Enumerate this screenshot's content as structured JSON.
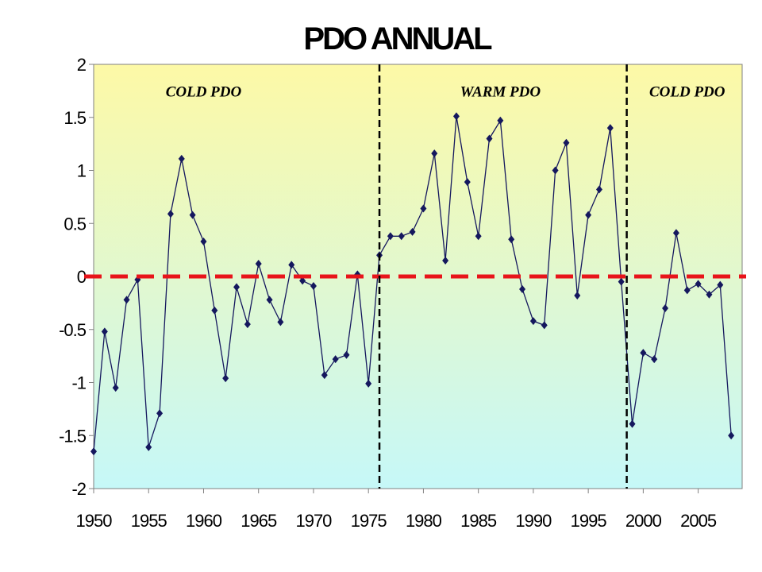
{
  "chart_data": {
    "type": "line",
    "title": "PDO ANNUAL",
    "xlabel": "",
    "ylabel": "",
    "xlim": [
      1950,
      2009
    ],
    "ylim": [
      -2,
      2
    ],
    "x_ticks": [
      1950,
      1955,
      1960,
      1965,
      1970,
      1975,
      1980,
      1985,
      1990,
      1995,
      2000,
      2005
    ],
    "y_ticks": [
      {
        "value": 2,
        "label": "2"
      },
      {
        "value": 1.5,
        "label": "1.5"
      },
      {
        "value": 1,
        "label": "1"
      },
      {
        "value": 0.5,
        "label": "0.5"
      },
      {
        "value": 0,
        "label": "0"
      },
      {
        "value": -0.5,
        "label": "-0.5"
      },
      {
        "value": -1,
        "label": "-1"
      },
      {
        "value": -1.5,
        "label": "-1.5"
      },
      {
        "value": -2,
        "label": "-2"
      }
    ],
    "grid": false,
    "background_gradient": [
      "#fdf9a6",
      "#c6f8f8"
    ],
    "series": [
      {
        "color": "#15185e",
        "marker": "diamond",
        "x": [
          1950,
          1951,
          1952,
          1953,
          1954,
          1955,
          1956,
          1957,
          1958,
          1959,
          1960,
          1961,
          1962,
          1963,
          1964,
          1965,
          1966,
          1967,
          1968,
          1969,
          1970,
          1971,
          1972,
          1973,
          1974,
          1975,
          1976,
          1977,
          1978,
          1979,
          1980,
          1981,
          1982,
          1983,
          1984,
          1985,
          1986,
          1987,
          1988,
          1989,
          1990,
          1991,
          1992,
          1993,
          1994,
          1995,
          1996,
          1997,
          1998,
          1999,
          2000,
          2001,
          2002,
          2003,
          2004,
          2005,
          2006,
          2007,
          2008
        ],
        "y": [
          -1.65,
          -0.52,
          -1.05,
          -0.22,
          -0.03,
          -1.61,
          -1.29,
          0.59,
          1.11,
          0.58,
          0.33,
          -0.32,
          -0.96,
          -0.1,
          -0.45,
          0.12,
          -0.22,
          -0.43,
          0.11,
          -0.04,
          -0.09,
          -0.93,
          -0.78,
          -0.74,
          0.02,
          -1.01,
          0.2,
          0.38,
          0.38,
          0.42,
          0.64,
          1.16,
          0.15,
          1.51,
          0.89,
          0.38,
          1.3,
          1.47,
          0.35,
          -0.12,
          -0.42,
          -0.46,
          1.0,
          1.26,
          -0.18,
          0.58,
          0.82,
          1.4,
          -0.05,
          -1.39,
          -0.72,
          -0.78,
          -0.3,
          0.41,
          -0.13,
          -0.07,
          -0.17,
          -0.08,
          -1.5
        ]
      }
    ],
    "reference_lines": [
      {
        "orientation": "horizontal",
        "value": 0,
        "color": "#e8141a",
        "style": "dashed"
      },
      {
        "orientation": "vertical",
        "value": 1976,
        "color": "#000000",
        "style": "dashed"
      },
      {
        "orientation": "vertical",
        "value": 1998.5,
        "color": "#000000",
        "style": "dashed"
      }
    ],
    "annotations": [
      {
        "text": "COLD PDO",
        "x": 1960,
        "y": 1.75
      },
      {
        "text": "WARM PDO",
        "x": 1987,
        "y": 1.75
      },
      {
        "text": "COLD PDO",
        "x": 2004,
        "y": 1.75
      }
    ]
  }
}
